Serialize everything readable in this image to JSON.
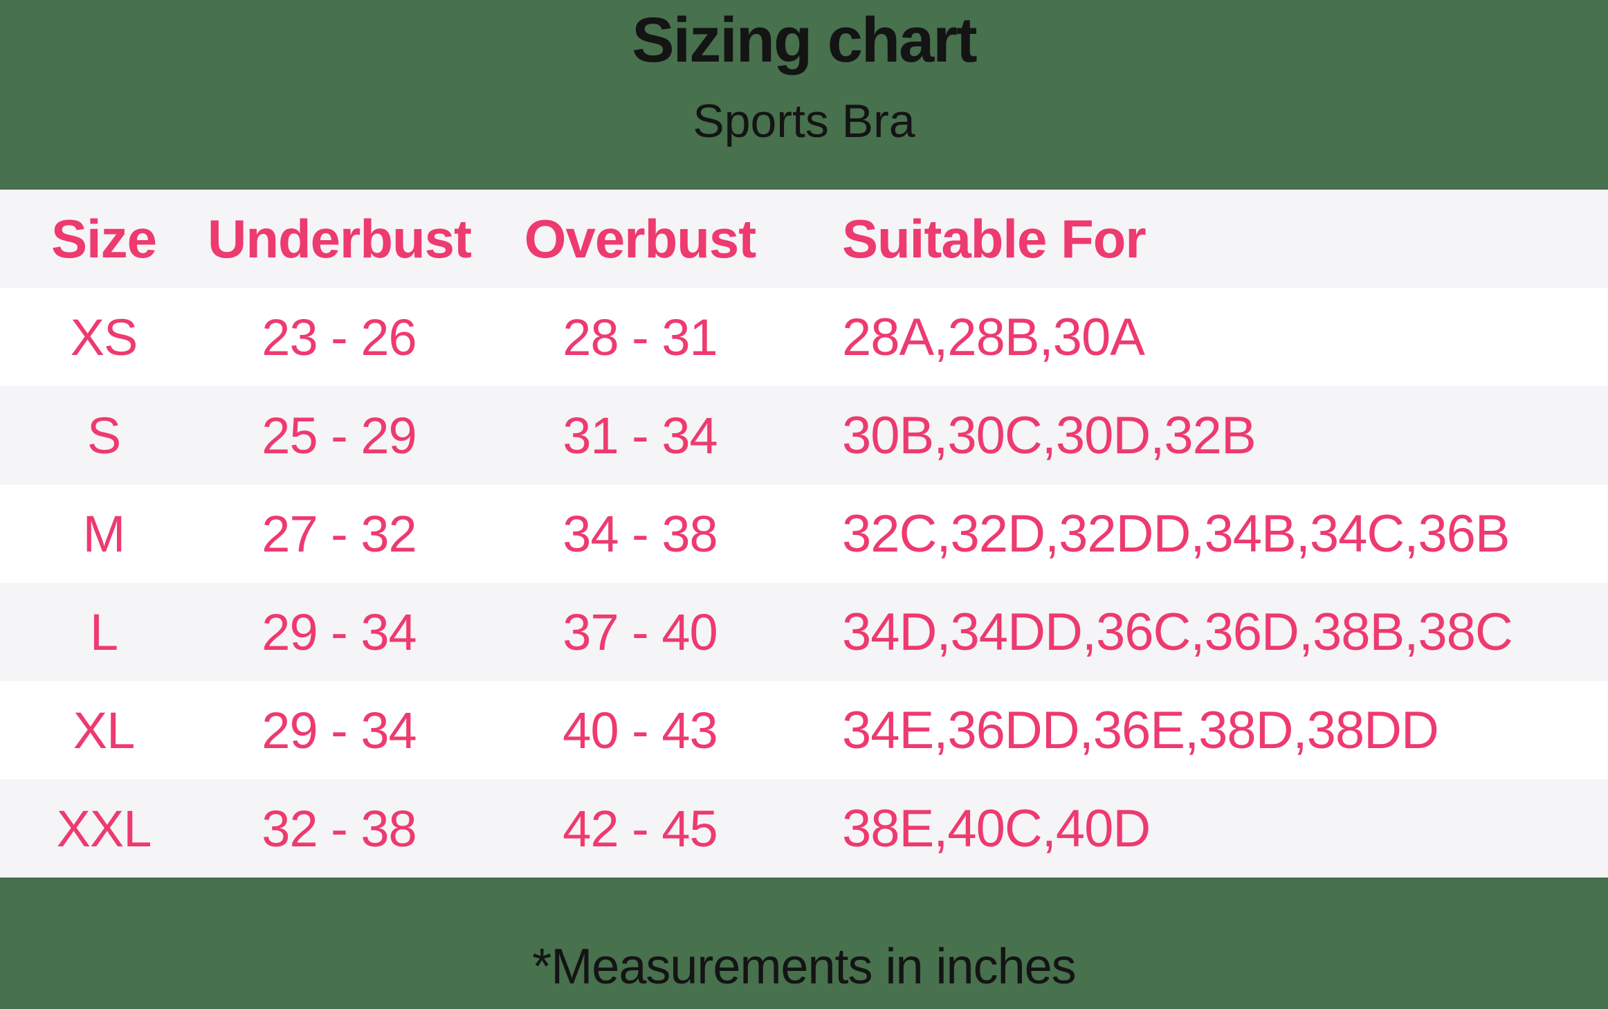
{
  "title": "Sizing chart",
  "subtitle": "Sports Bra",
  "footnote": "*Measurements in inches",
  "colors": {
    "background": "#48714E",
    "accent_pink": "#ED3A6F",
    "row_alt": "#F5F4F6",
    "row_white": "#FFFFFF",
    "text_black": "#141414"
  },
  "chart_data": {
    "type": "table",
    "title": "Sizing chart",
    "subtitle": "Sports Bra",
    "units": "inches",
    "columns": [
      "Size",
      "Underbust",
      "Overbust",
      "Suitable For"
    ],
    "rows": [
      [
        "XS",
        "23 - 26",
        "28 - 31",
        "28A,28B,30A"
      ],
      [
        "S",
        "25 - 29",
        "31 - 34",
        "30B,30C,30D,32B"
      ],
      [
        "M",
        "27 - 32",
        "34 - 38",
        "32C,32D,32DD,34B,34C,36B"
      ],
      [
        "L",
        "29 - 34",
        "37 - 40",
        "34D,34DD,36C,36D,38B,38C"
      ],
      [
        "XL",
        "29 - 34",
        "40 - 43",
        "34E,36DD,36E,38D,38DD"
      ],
      [
        "XXL",
        "32 - 38",
        "42 - 45",
        "38E,40C,40D"
      ]
    ]
  }
}
